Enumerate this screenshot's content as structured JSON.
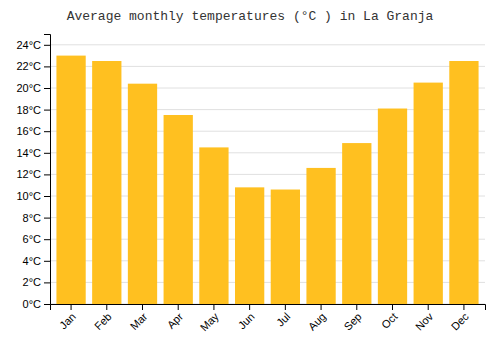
{
  "chart_data": {
    "type": "bar",
    "title": "Average monthly temperatures (°C ) in La Granja",
    "categories": [
      "Jan",
      "Feb",
      "Mar",
      "Apr",
      "May",
      "Jun",
      "Jul",
      "Aug",
      "Sep",
      "Oct",
      "Nov",
      "Dec"
    ],
    "values": [
      23.0,
      22.5,
      20.4,
      17.5,
      14.5,
      10.8,
      10.6,
      12.6,
      14.9,
      18.1,
      20.5,
      22.5
    ],
    "color": "#FFC020",
    "ylim": [
      0,
      25
    ],
    "yticks": [
      {
        "value": 0,
        "label": "0°C"
      },
      {
        "value": 2,
        "label": "2°C"
      },
      {
        "value": 4,
        "label": "4°C"
      },
      {
        "value": 6,
        "label": "6°C"
      },
      {
        "value": 8,
        "label": "8°C"
      },
      {
        "value": 10,
        "label": "10°C"
      },
      {
        "value": 12,
        "label": "12°C"
      },
      {
        "value": 14,
        "label": "14°C"
      },
      {
        "value": 16,
        "label": "16°C"
      },
      {
        "value": 18,
        "label": "18°C"
      },
      {
        "value": 20,
        "label": "20°C"
      },
      {
        "value": 22,
        "label": "22°C"
      },
      {
        "value": 24,
        "label": "24°C"
      }
    ],
    "grid": true
  }
}
